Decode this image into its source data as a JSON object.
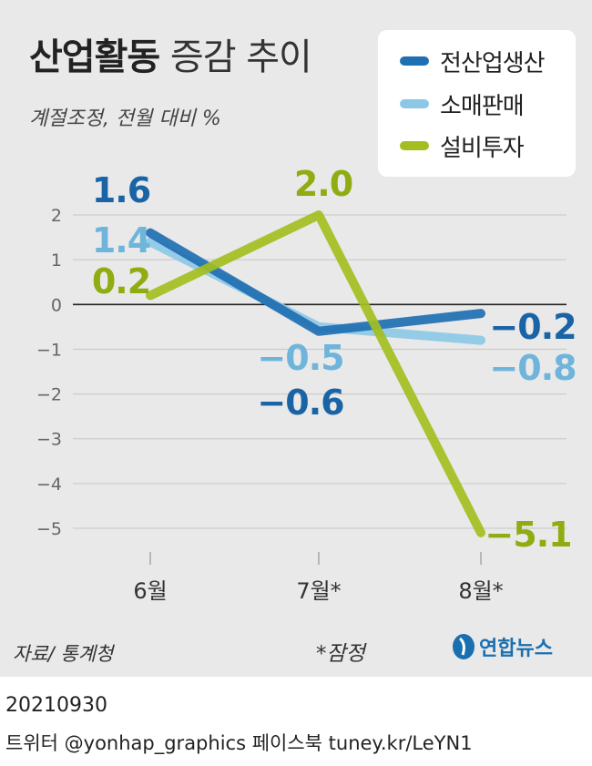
{
  "header": {
    "title_bold": "산업활동",
    "title_light": "증감 추이",
    "subtitle": "계절조정, 전월 대비 %"
  },
  "legend": [
    {
      "label": "전산업생산",
      "color": "#1f6fb2"
    },
    {
      "label": "소매판매",
      "color": "#8cc8e6"
    },
    {
      "label": "설비투자",
      "color": "#a3be1f"
    }
  ],
  "chart_data": {
    "type": "line",
    "categories": [
      "6월",
      "7월*",
      "8월*"
    ],
    "ylim": [
      -5,
      2
    ],
    "yticks": [
      "2",
      "1",
      "0",
      "−1",
      "−2",
      "−3",
      "−4",
      "−5"
    ],
    "grid": true,
    "legend_position": "top-right",
    "series": [
      {
        "name": "전산업생산",
        "values": [
          1.6,
          -0.6,
          -0.2
        ],
        "labels": [
          "1.6",
          "−0.6",
          "−0.2"
        ],
        "color": "#1f6fb2",
        "label_color": "#1a64a6"
      },
      {
        "name": "소매판매",
        "values": [
          1.4,
          -0.5,
          -0.8
        ],
        "labels": [
          "1.4",
          "−0.5",
          "−0.8"
        ],
        "color": "#8cc8e6",
        "label_color": "#6fb5db"
      },
      {
        "name": "설비투자",
        "values": [
          0.2,
          2.0,
          -5.1
        ],
        "labels": [
          "0.2",
          "2.0",
          "−5.1"
        ],
        "color": "#a3be1f",
        "label_color": "#8fad12"
      }
    ]
  },
  "footer": {
    "source": "자료/ 통계청",
    "note": "*잠정",
    "logo_text": "연합뉴스",
    "date": "20210930",
    "social": "트위터 @yonhap_graphics  페이스북 tuney.kr/LeYN1"
  }
}
